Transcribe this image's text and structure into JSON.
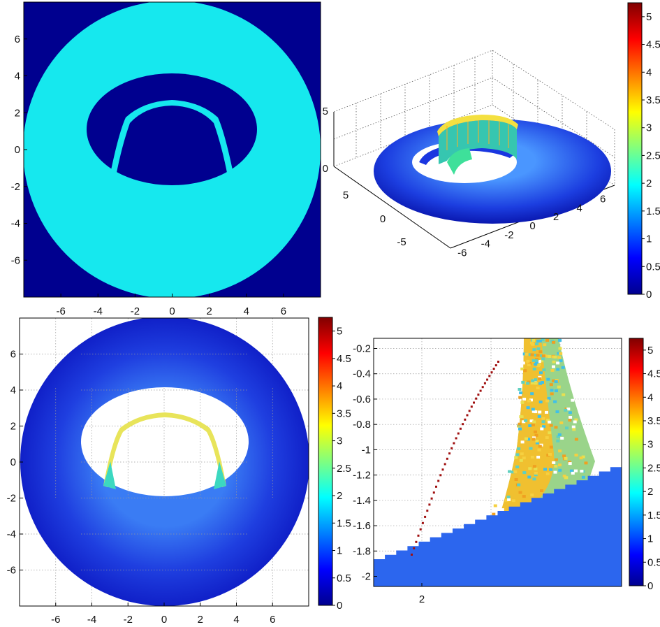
{
  "chart_data": [
    {
      "type": "heatmap",
      "panel": "top-left",
      "description_kind": "indicator map (uniform value inside annulus)",
      "xticks": [
        "-6",
        "-4",
        "-2",
        "0",
        "2",
        "4",
        "6"
      ],
      "yticks": [
        "6",
        "4",
        "2",
        "0",
        "-2",
        "-4",
        "-6"
      ],
      "xlim": [
        -8,
        8
      ],
      "ylim": [
        -8,
        8
      ],
      "background_color": "#00008f",
      "fill_color": "#16e8ee",
      "annulus_outer_radius": 8,
      "hole_semi_axes": [
        4.6,
        4.1
      ],
      "hole_center": [
        0,
        0.8
      ],
      "arch_radius": 2.8
    },
    {
      "type": "surface",
      "panel": "top-right",
      "zticks": [
        "5",
        "0"
      ],
      "xticks": [
        "-6",
        "-4",
        "-2",
        "0",
        "2",
        "4",
        "6"
      ],
      "yticks": [
        "5",
        "0",
        "-5"
      ],
      "colorbar": {
        "ticks": [
          "5",
          "4.5",
          "4",
          "3.5",
          "3",
          "2.5",
          "2",
          "1.5",
          "1",
          "0.5",
          "0"
        ],
        "range": [
          0,
          5.25
        ]
      }
    },
    {
      "type": "heatmap",
      "panel": "bottom-left",
      "xticks": [
        "-6",
        "-4",
        "-2",
        "0",
        "2",
        "4",
        "6"
      ],
      "yticks": [
        "6",
        "4",
        "2",
        "0",
        "-2",
        "-4",
        "-6"
      ],
      "xlim": [
        -8,
        8
      ],
      "ylim": [
        -8,
        8
      ],
      "grid": true,
      "colorbar": {
        "ticks": [
          "5",
          "4.5",
          "4",
          "3.5",
          "3",
          "2.5",
          "2",
          "1.5",
          "1",
          "0.5",
          "0"
        ],
        "range": [
          0,
          5.25
        ]
      }
    },
    {
      "type": "heatmap",
      "panel": "bottom-right",
      "xticks": [
        "2"
      ],
      "yticks": [
        "-0.2",
        "-0.4",
        "-0.6",
        "-0.8",
        "-1",
        "-1.2",
        "-1.4",
        "-1.6",
        "-1.8",
        "-2"
      ],
      "ylim": [
        -2.08,
        -0.12
      ],
      "grid": true,
      "colorbar": {
        "ticks": [
          "5",
          "4.5",
          "4",
          "3.5",
          "3",
          "2.5",
          "2",
          "1.5",
          "1",
          "0.5",
          "0"
        ],
        "range": [
          0,
          5.25
        ]
      }
    }
  ]
}
